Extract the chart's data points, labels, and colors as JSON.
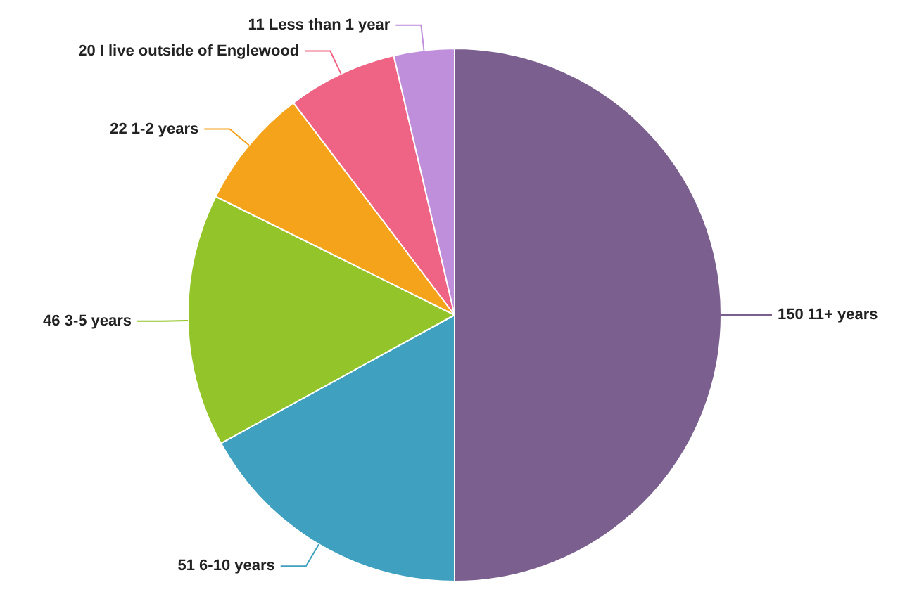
{
  "chart_data": {
    "type": "pie",
    "categories": [
      "11+ years",
      "6-10 years",
      "3-5 years",
      "1-2 years",
      "I live outside of Englewood",
      "Less than 1 year"
    ],
    "values": [
      150,
      51,
      46,
      22,
      20,
      11
    ],
    "colors": [
      "#7b5f8e",
      "#3fa0c0",
      "#93c429",
      "#f5a31b",
      "#ef6484",
      "#bf8fdc"
    ],
    "data_labels": true,
    "legend": false
  }
}
